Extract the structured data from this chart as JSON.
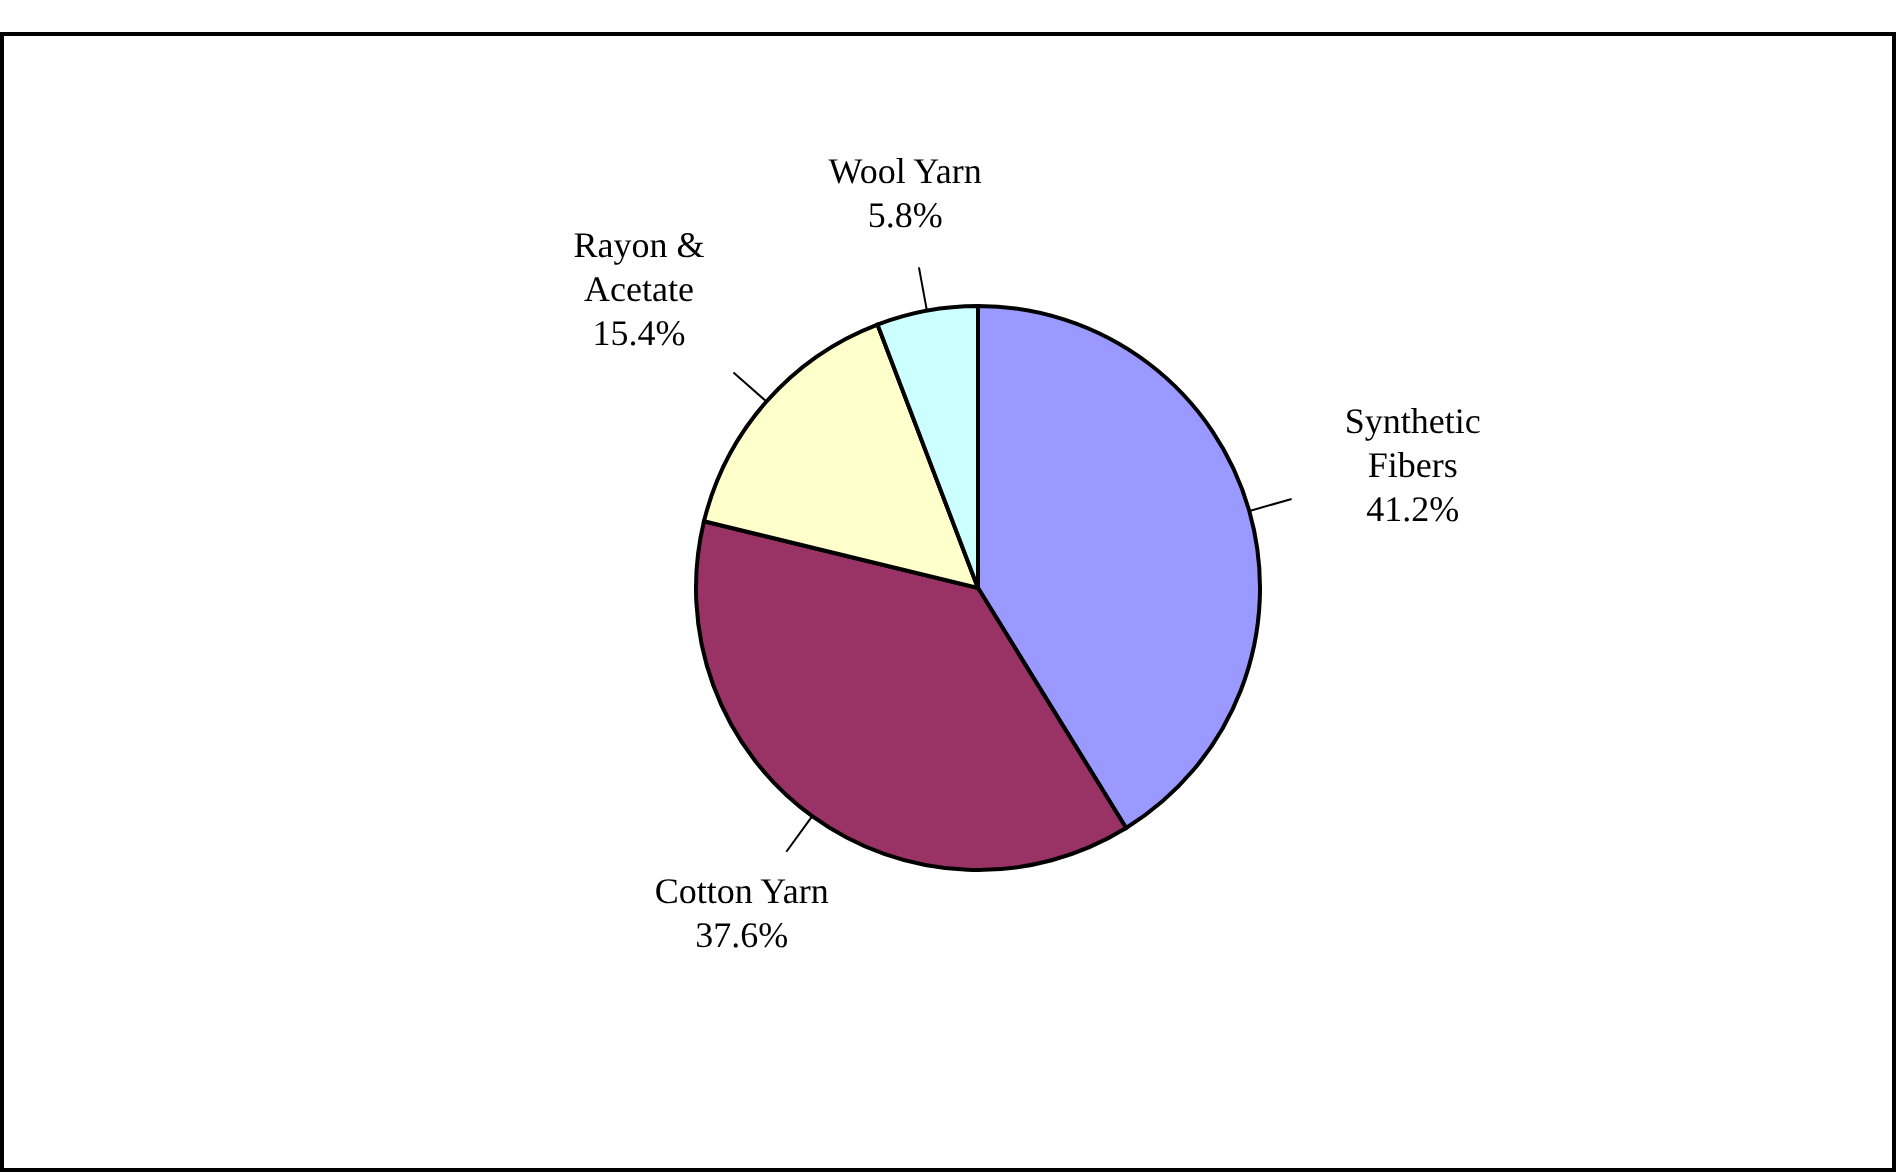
{
  "chart_data": {
    "type": "pie",
    "categories": [
      "Synthetic Fibers",
      "Cotton Yarn",
      "Rayon & Acetate",
      "Wool Yarn"
    ],
    "values": [
      41.2,
      37.6,
      15.4,
      5.8
    ],
    "value_labels": [
      "41.2%",
      "37.6%",
      "15.4%",
      "5.8%"
    ],
    "colors": [
      "#9999ff",
      "#993366",
      "#ffffcc",
      "#ccffff"
    ]
  }
}
